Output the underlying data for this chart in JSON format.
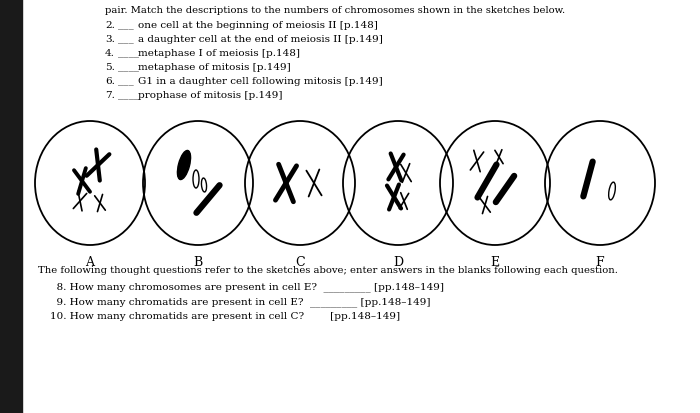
{
  "bg_color": "#ffffff",
  "title_text": "pair. Match the descriptions to the numbers of chromosomes shown in the sketches below.",
  "items": [
    [
      "2.",
      "___",
      "one cell at the beginning of meiosis II [p.148]"
    ],
    [
      "3.",
      "___",
      "a daughter cell at the end of meiosis II [p.149]"
    ],
    [
      "4.",
      "____",
      "metaphase I of meiosis [p.148]"
    ],
    [
      "5.",
      "____",
      "metaphase of mitosis [p.149]"
    ],
    [
      "6.",
      "___",
      "G1 in a daughter cell following mitosis [p.149]"
    ],
    [
      "7.",
      "____",
      "prophase of mitosis [p.149]"
    ]
  ],
  "cell_labels": [
    "A",
    "B",
    "C",
    "D",
    "E",
    "F"
  ],
  "bottom_text": "The following thought questions refer to the sketches above; enter answers in the blanks following each question.",
  "q8": "  8. How many chromosomes are present in cell E?  _________ [pp.148–149]",
  "q9": "  9. How many chromatids are present in cell E?  _________ [pp.148–149]",
  "q10": "10. How many chromatids are present in cell C?        [pp.148–149]"
}
